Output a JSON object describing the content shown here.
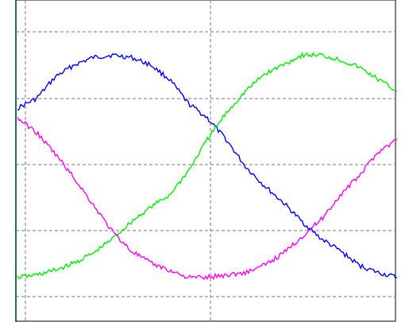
{
  "colors": {
    "background": "#ffffff",
    "frame": "#000000",
    "left_border": "#4fd6c6",
    "grid": "#777777"
  },
  "chart_data": {
    "type": "line",
    "title": "",
    "xlabel": "",
    "ylabel": "",
    "grid": true,
    "legend": "none",
    "xlim": [
      0,
      1
    ],
    "ylim": [
      0,
      1
    ],
    "x": [
      0,
      0.05,
      0.1,
      0.15,
      0.2,
      0.25,
      0.3,
      0.35,
      0.4,
      0.45,
      0.5,
      0.55,
      0.6,
      0.65,
      0.7,
      0.75,
      0.8,
      0.85,
      0.9,
      0.95,
      1.0
    ],
    "series": [
      {
        "color": "#0000ff",
        "values": [
          0.71,
          0.75,
          0.84,
          0.89,
          0.92,
          0.93,
          0.92,
          0.89,
          0.83,
          0.73,
          0.67,
          0.58,
          0.47,
          0.39,
          0.32,
          0.24,
          0.17,
          0.12,
          0.06,
          0.03,
          0.01
        ]
      },
      {
        "color": "#00ee00",
        "values": [
          0.01,
          0.02,
          0.04,
          0.07,
          0.11,
          0.17,
          0.24,
          0.3,
          0.35,
          0.45,
          0.58,
          0.69,
          0.78,
          0.85,
          0.89,
          0.93,
          0.93,
          0.91,
          0.88,
          0.83,
          0.78
        ]
      },
      {
        "color": "#ff00ff",
        "values": [
          0.67,
          0.61,
          0.52,
          0.42,
          0.31,
          0.2,
          0.12,
          0.07,
          0.04,
          0.01,
          0.01,
          0.02,
          0.03,
          0.06,
          0.11,
          0.18,
          0.25,
          0.35,
          0.43,
          0.53,
          0.58
        ]
      }
    ]
  }
}
